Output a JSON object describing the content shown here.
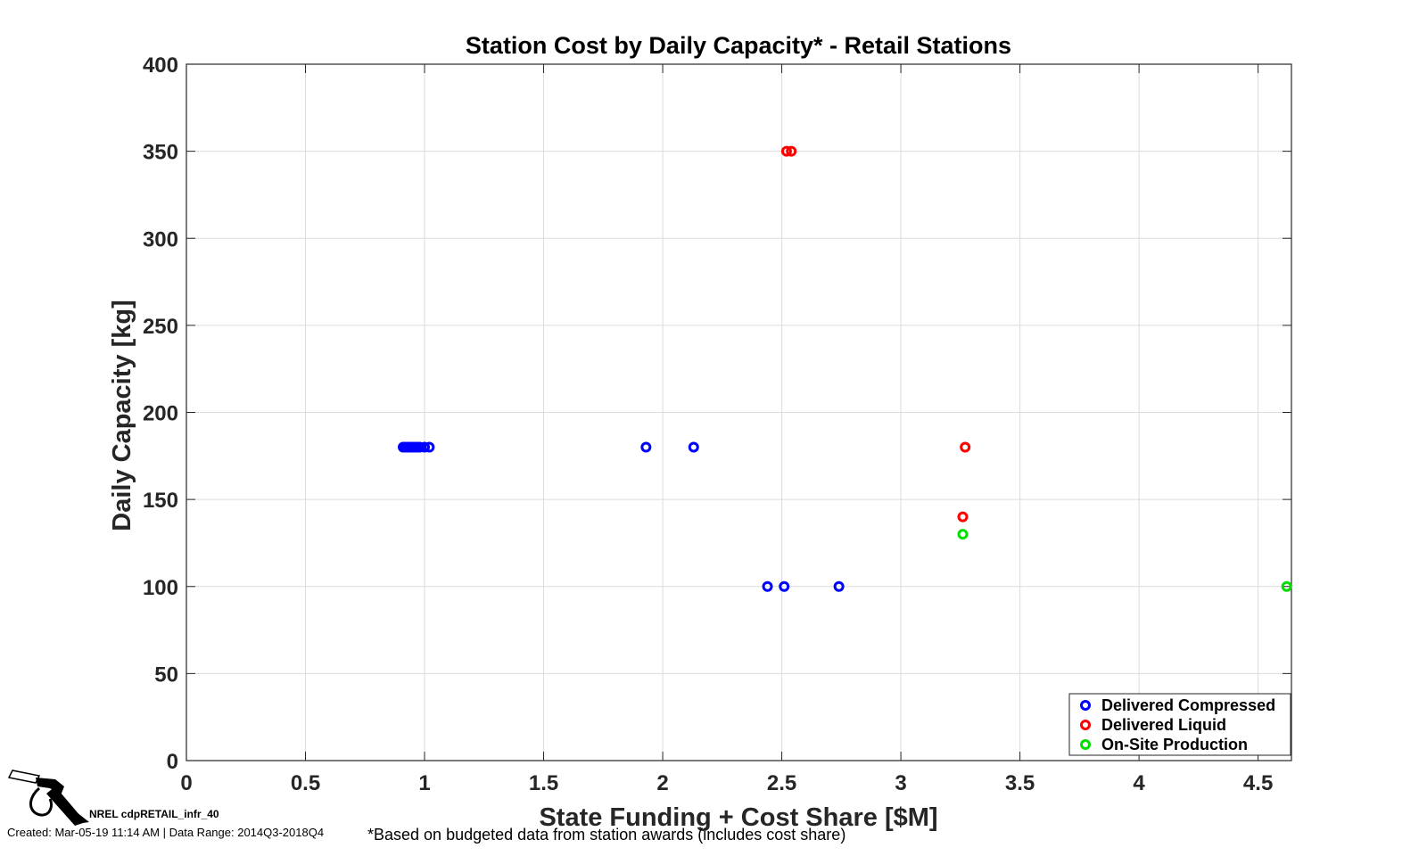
{
  "chart_data": {
    "type": "scatter",
    "title": "Station Cost by Daily Capacity* - Retail Stations",
    "xlabel": "State Funding + Cost Share [$M]",
    "ylabel": "Daily Capacity [kg]",
    "xlim": [
      0,
      4.64
    ],
    "ylim": [
      0,
      400
    ],
    "xticks": [
      0,
      0.5,
      1,
      1.5,
      2,
      2.5,
      3,
      3.5,
      4,
      4.5
    ],
    "xtick_labels": [
      "0",
      "0.5",
      "1",
      "1.5",
      "2",
      "2.5",
      "3",
      "3.5",
      "4",
      "4.5"
    ],
    "yticks": [
      0,
      50,
      100,
      150,
      200,
      250,
      300,
      350,
      400
    ],
    "ytick_labels": [
      "0",
      "50",
      "100",
      "150",
      "200",
      "250",
      "300",
      "350",
      "400"
    ],
    "grid": true,
    "legend_position": "bottom-right",
    "series": [
      {
        "name": "Delivered Compressed",
        "color": "#0000ff",
        "points": [
          {
            "x": 0.91,
            "y": 180
          },
          {
            "x": 0.92,
            "y": 180
          },
          {
            "x": 0.93,
            "y": 180
          },
          {
            "x": 0.94,
            "y": 180
          },
          {
            "x": 0.95,
            "y": 180
          },
          {
            "x": 0.96,
            "y": 180
          },
          {
            "x": 0.97,
            "y": 180
          },
          {
            "x": 0.98,
            "y": 180
          },
          {
            "x": 1.0,
            "y": 180
          },
          {
            "x": 1.02,
            "y": 180
          },
          {
            "x": 1.93,
            "y": 180
          },
          {
            "x": 2.13,
            "y": 180
          },
          {
            "x": 2.44,
            "y": 100
          },
          {
            "x": 2.51,
            "y": 100
          },
          {
            "x": 2.74,
            "y": 100
          }
        ]
      },
      {
        "name": "Delivered Liquid",
        "color": "#ff0000",
        "points": [
          {
            "x": 2.52,
            "y": 350
          },
          {
            "x": 2.54,
            "y": 350
          },
          {
            "x": 3.27,
            "y": 180
          },
          {
            "x": 3.26,
            "y": 140
          }
        ]
      },
      {
        "name": "On-Site Production",
        "color": "#00e000",
        "points": [
          {
            "x": 3.26,
            "y": 130
          },
          {
            "x": 4.62,
            "y": 100
          }
        ]
      }
    ]
  },
  "footer": {
    "chart_id": "NREL cdpRETAIL_infr_40",
    "created": "Created: Mar-05-19 11:14 AM | Data Range: 2014Q3-2018Q4",
    "footnote": "*Based on budgeted data from station awards (includes cost share)",
    "logo_icon": "fuel-nozzle-icon"
  }
}
